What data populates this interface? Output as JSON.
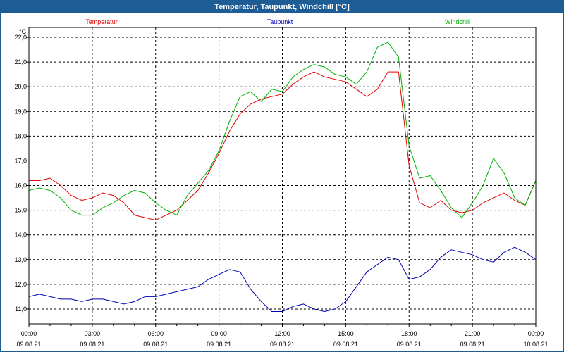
{
  "window": {
    "title": "Temperatur, Taupunkt, Windchill [°C]"
  },
  "chart_data": {
    "type": "line",
    "title": "Temperatur, Taupunkt, Windchill [°C]",
    "ylabel": "°C",
    "ylim": [
      10.4,
      22.4
    ],
    "yticks": [
      "11,0",
      "12,0",
      "13,0",
      "14,0",
      "15,0",
      "16,0",
      "17,0",
      "18,0",
      "19,0",
      "20,0",
      "21,0",
      "22,0"
    ],
    "xlim": [
      0,
      24
    ],
    "xticks": [
      {
        "time": "00:00",
        "date": "09.08.21"
      },
      {
        "time": "03:00",
        "date": "09.08.21"
      },
      {
        "time": "06:00",
        "date": "09.08.21"
      },
      {
        "time": "09:00",
        "date": "09.08.21"
      },
      {
        "time": "12:00",
        "date": "09.08.21"
      },
      {
        "time": "15:00",
        "date": "09.08.21"
      },
      {
        "time": "18:00",
        "date": "09.08.21"
      },
      {
        "time": "21:00",
        "date": "09.08.21"
      },
      {
        "time": "00:00",
        "date": "10.08.21"
      }
    ],
    "grid": true,
    "x": [
      0,
      0.5,
      1,
      1.5,
      2,
      2.5,
      3,
      3.5,
      4,
      4.5,
      5,
      5.5,
      6,
      6.5,
      7,
      7.5,
      8,
      8.5,
      9,
      9.5,
      10,
      10.5,
      11,
      11.5,
      12,
      12.5,
      13,
      13.5,
      14,
      14.5,
      15,
      15.5,
      16,
      16.5,
      17,
      17.5,
      18,
      18.5,
      19,
      19.5,
      20,
      20.5,
      21,
      21.5,
      22,
      22.5,
      23,
      23.5,
      24
    ],
    "series": [
      {
        "name": "Temperatur",
        "color": "#e00000",
        "values": [
          16.2,
          16.2,
          16.3,
          16.0,
          15.6,
          15.4,
          15.5,
          15.7,
          15.6,
          15.3,
          14.8,
          14.7,
          14.6,
          14.8,
          15.0,
          15.4,
          15.8,
          16.5,
          17.3,
          18.2,
          18.9,
          19.3,
          19.5,
          19.6,
          19.7,
          20.1,
          20.4,
          20.6,
          20.4,
          20.3,
          20.2,
          19.9,
          19.6,
          19.9,
          20.6,
          20.6,
          16.8,
          15.3,
          15.1,
          15.4,
          15.0,
          14.9,
          15.0,
          15.3,
          15.5,
          15.7,
          15.4,
          15.2,
          16.2
        ]
      },
      {
        "name": "Taupunkt",
        "color": "#0000b0",
        "values": [
          11.5,
          11.6,
          11.5,
          11.4,
          11.4,
          11.3,
          11.4,
          11.4,
          11.3,
          11.2,
          11.3,
          11.5,
          11.5,
          11.6,
          11.7,
          11.8,
          11.9,
          12.2,
          12.4,
          12.6,
          12.5,
          11.8,
          11.3,
          10.9,
          10.9,
          11.1,
          11.2,
          11.0,
          10.9,
          11.0,
          11.3,
          11.9,
          12.5,
          12.8,
          13.1,
          13.0,
          12.2,
          12.3,
          12.6,
          13.1,
          13.4,
          13.3,
          13.2,
          13.0,
          12.9,
          13.3,
          13.5,
          13.3,
          13.0
        ]
      },
      {
        "name": "Windchill",
        "color": "#00b000",
        "values": [
          15.8,
          15.9,
          15.8,
          15.5,
          15.0,
          14.8,
          14.8,
          15.1,
          15.3,
          15.6,
          15.8,
          15.7,
          15.3,
          15.0,
          14.8,
          15.6,
          16.1,
          16.6,
          17.4,
          18.6,
          19.6,
          19.8,
          19.4,
          19.9,
          19.8,
          20.4,
          20.7,
          20.9,
          20.8,
          20.5,
          20.4,
          20.1,
          20.6,
          21.6,
          21.8,
          21.2,
          17.6,
          16.3,
          16.4,
          15.8,
          15.1,
          14.7,
          15.3,
          16.0,
          17.1,
          16.5,
          15.5,
          15.2,
          16.2
        ]
      }
    ]
  }
}
